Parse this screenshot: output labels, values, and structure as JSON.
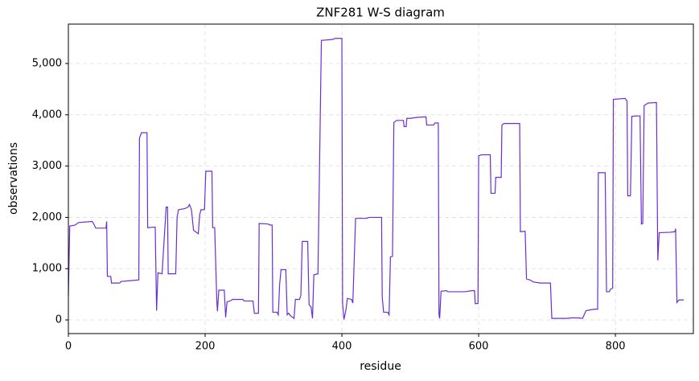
{
  "chart_data": {
    "type": "line",
    "title": "ZNF281 W-S diagram",
    "x_label": "residue",
    "y_label": "observations",
    "color": "#6a2ed4",
    "grid": true,
    "xlim": [
      0,
      914
    ],
    "ylim": [
      -266,
      5768
    ],
    "xticks": [
      0,
      200,
      400,
      600,
      800
    ],
    "yticks": [
      0,
      {
        "value": 1000,
        "label": "1,000"
      },
      {
        "value": 2000,
        "label": "2,000"
      },
      {
        "value": 3000,
        "label": "3,000"
      },
      {
        "value": 4000,
        "label": "4,000"
      },
      {
        "value": 5000,
        "label": "5,000"
      }
    ],
    "x": [
      0,
      2,
      10,
      15,
      35,
      38,
      40,
      55,
      56,
      57,
      62,
      63,
      75,
      77,
      95,
      103,
      104,
      107,
      115,
      116,
      127,
      129,
      131,
      137,
      143,
      145,
      146,
      157,
      159,
      161,
      170,
      175,
      177,
      180,
      183,
      188,
      190,
      192,
      194,
      199,
      201,
      210,
      211,
      214,
      217,
      218,
      220,
      228,
      230,
      232,
      238,
      240,
      255,
      257,
      270,
      272,
      278,
      279,
      292,
      295,
      298,
      299,
      305,
      307,
      309,
      311,
      318,
      320,
      322,
      325,
      330,
      332,
      338,
      340,
      342,
      350,
      352,
      355,
      357,
      359,
      365,
      370,
      387,
      390,
      400,
      401,
      403,
      406,
      408,
      414,
      416,
      420,
      436,
      438,
      440,
      448,
      458,
      459,
      461,
      467,
      469,
      471,
      474,
      476,
      480,
      490,
      491,
      494,
      495,
      500,
      510,
      523,
      524,
      534,
      536,
      541,
      542,
      543,
      545,
      553,
      555,
      580,
      590,
      594,
      595,
      599,
      600,
      604,
      617,
      618,
      624,
      625,
      633,
      634,
      637,
      660,
      661,
      668,
      670,
      675,
      680,
      690,
      705,
      707,
      730,
      735,
      745,
      752,
      757,
      765,
      770,
      774,
      775,
      785,
      787,
      791,
      793,
      796,
      797,
      814,
      817,
      818,
      822,
      824,
      836,
      838,
      840,
      842,
      848,
      860,
      862,
      864,
      880,
      887,
      888,
      890,
      893,
      900
    ],
    "values": [
      480,
      1830,
      1850,
      1900,
      1920,
      1850,
      1790,
      1790,
      1920,
      850,
      850,
      720,
      720,
      750,
      770,
      780,
      3550,
      3650,
      3650,
      1800,
      1810,
      180,
      920,
      900,
      2200,
      2200,
      900,
      900,
      2000,
      2150,
      2170,
      2200,
      2250,
      2150,
      1750,
      1700,
      1680,
      2050,
      2150,
      2150,
      2900,
      2900,
      1800,
      1800,
      400,
      170,
      580,
      580,
      50,
      350,
      380,
      400,
      400,
      370,
      370,
      130,
      130,
      1880,
      1870,
      1850,
      1850,
      150,
      150,
      100,
      700,
      980,
      980,
      100,
      130,
      80,
      30,
      400,
      400,
      480,
      1530,
      1530,
      300,
      250,
      30,
      880,
      900,
      5450,
      5470,
      5490,
      5490,
      330,
      10,
      200,
      420,
      400,
      330,
      1980,
      1980,
      1990,
      2000,
      2000,
      2000,
      450,
      150,
      150,
      100,
      1230,
      1240,
      3850,
      3890,
      3890,
      3770,
      3770,
      3930,
      3930,
      3950,
      3960,
      3800,
      3800,
      3840,
      3840,
      100,
      30,
      560,
      570,
      550,
      550,
      570,
      570,
      320,
      320,
      3200,
      3220,
      3220,
      2470,
      2470,
      2780,
      2780,
      3800,
      3830,
      3830,
      1720,
      1730,
      800,
      780,
      740,
      720,
      720,
      30,
      30,
      40,
      40,
      30,
      180,
      200,
      210,
      210,
      2870,
      2870,
      550,
      550,
      600,
      620,
      4300,
      4320,
      4270,
      2420,
      2420,
      3970,
      3980,
      1870,
      1880,
      4180,
      4230,
      4240,
      1160,
      1700,
      1710,
      1720,
      1780,
      340,
      390,
      390
    ]
  }
}
